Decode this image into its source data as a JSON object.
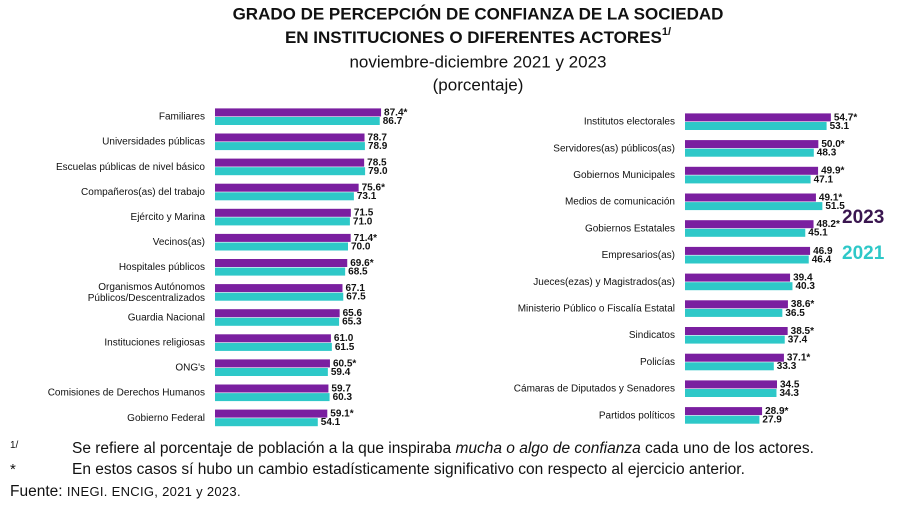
{
  "header": {
    "title_lines": [
      "GRADO DE PERCEPCIÓN DE CONFIANZA DE LA SOCIEDAD",
      "EN INSTITUCIONES O DIFERENTES ACTORES"
    ],
    "title_superscript": "1/",
    "subtitle": "noviembre-diciembre 2021 y 2023",
    "unit": "(porcentaje)"
  },
  "chart_data": [
    {
      "type": "bar",
      "categories": [
        "Familiares",
        "Universidades públicas",
        "Escuelas públicas de nivel básico",
        "Compañeros(as) del trabajo",
        "Ejército y Marina",
        "Vecinos(as)",
        "Hospitales públicos",
        "Organismos Autónomos\nPúblicos/Descentralizados",
        "Guardia Nacional",
        "Instituciones religiosas",
        "ONG's",
        "Comisiones de Derechos Humanos",
        "Gobierno Federal"
      ],
      "series": [
        {
          "color": "#7a1fa0",
          "values": [
            87.4,
            78.7,
            78.5,
            75.6,
            71.5,
            71.4,
            69.6,
            67.1,
            65.6,
            61.0,
            60.5,
            59.7,
            59.1
          ],
          "value_labels": [
            "87.4*",
            "78.7",
            "78.5",
            "75.6*",
            "71.5",
            "71.4*",
            "69.6*",
            "67.1",
            "65.6",
            "61.0",
            "60.5*",
            "59.7",
            "59.1*"
          ]
        },
        {
          "color": "#2ec8c8",
          "values": [
            86.7,
            78.9,
            79.0,
            73.1,
            71.0,
            70.0,
            68.5,
            67.5,
            65.3,
            61.5,
            59.4,
            60.3,
            54.1
          ],
          "value_labels": [
            "86.7",
            "78.9",
            "79.0",
            "73.1",
            "71.0",
            "70.0",
            "68.5",
            "67.5",
            "65.3",
            "61.5",
            "59.4",
            "60.3",
            "54.1"
          ]
        }
      ],
      "xlim": [
        0,
        100
      ]
    },
    {
      "type": "bar",
      "categories": [
        "Institutos electorales",
        "Servidores(as) públicos(as)",
        "Gobiernos Municipales",
        "Medios de comunicación",
        "Gobiernos Estatales",
        "Empresarios(as)",
        "Jueces(ezas) y Magistrados(as)",
        "Ministerio Público o Fiscalía Estatal",
        "Sindicatos",
        "Policías",
        "Cámaras de Diputados y Senadores",
        "Partidos políticos"
      ],
      "series": [
        {
          "name": "2023",
          "color": "#7a1fa0",
          "values": [
            54.7,
            50.0,
            49.9,
            49.1,
            48.2,
            46.9,
            39.4,
            38.6,
            38.5,
            37.1,
            34.5,
            28.9
          ],
          "value_labels": [
            "54.7*",
            "50.0*",
            "49.9*",
            "49.1*",
            "48.2*",
            "46.9",
            "39.4",
            "38.6*",
            "38.5*",
            "37.1*",
            "34.5",
            "28.9*"
          ]
        },
        {
          "name": "2021",
          "color": "#2ec8c8",
          "values": [
            53.1,
            48.3,
            47.1,
            51.5,
            45.1,
            46.4,
            40.3,
            36.5,
            37.4,
            33.3,
            34.3,
            27.9
          ],
          "value_labels": [
            "53.1",
            "48.3",
            "47.1",
            "51.5",
            "45.1",
            "46.4",
            "40.3",
            "36.5",
            "37.4",
            "33.3",
            "34.3",
            "27.9"
          ]
        }
      ],
      "xlim": [
        0,
        60
      ]
    }
  ],
  "notes": [
    {
      "marker": "1/",
      "text": [
        "Se refiere al porcentaje de población a la que inspiraba ",
        "mucha o algo de confianza",
        " cada uno de los actores."
      ]
    },
    {
      "marker": "*",
      "text": [
        "En estos casos sí hubo un cambio estadísticamente significativo con respecto al ejercicio anterior."
      ]
    }
  ],
  "source": {
    "label": "Fuente:",
    "text": "INEGI. ENCIG, 2021 y 2023."
  }
}
